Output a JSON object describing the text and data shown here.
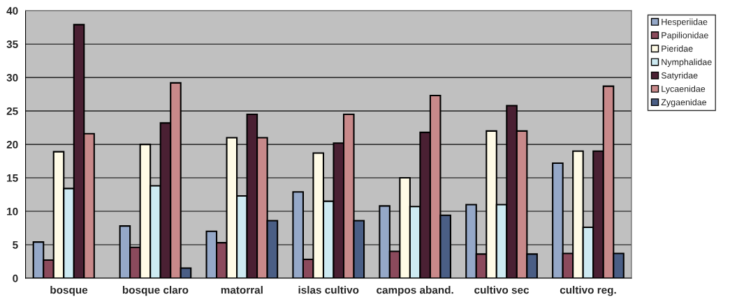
{
  "chart_data": {
    "type": "bar",
    "categories": [
      "bosque",
      "bosque claro",
      "matorral",
      "islas cultivo",
      "campos aband.",
      "cultivo sec",
      "cultivo reg."
    ],
    "series": [
      {
        "name": "Hesperiidae",
        "color": "#95a8c8",
        "values": [
          5.4,
          7.8,
          7.0,
          12.9,
          10.8,
          11.0,
          17.2
        ]
      },
      {
        "name": "Papilionidae",
        "color": "#8b4a5c",
        "values": [
          2.7,
          4.6,
          5.3,
          2.8,
          4.0,
          3.6,
          3.7
        ]
      },
      {
        "name": "Pieridae",
        "color": "#fffbe6",
        "values": [
          18.9,
          20.0,
          21.0,
          18.7,
          15.0,
          22.0,
          19.0
        ]
      },
      {
        "name": "Nymphalidae",
        "color": "#cdeaf2",
        "values": [
          13.4,
          13.8,
          12.3,
          11.5,
          10.7,
          11.0,
          7.6
        ]
      },
      {
        "name": "Satyridae",
        "color": "#4a2033",
        "values": [
          37.9,
          23.2,
          24.5,
          20.2,
          21.8,
          25.8,
          19.0
        ]
      },
      {
        "name": "Lycaenidae",
        "color": "#c8898a",
        "values": [
          21.6,
          29.2,
          21.0,
          24.5,
          27.3,
          22.0,
          28.7
        ]
      },
      {
        "name": "Zygaenidae",
        "color": "#4a5e85",
        "values": [
          null,
          1.5,
          8.6,
          8.6,
          9.4,
          3.6,
          3.7
        ]
      }
    ],
    "ylim": [
      0,
      40
    ],
    "yticks": [
      0,
      5,
      10,
      15,
      20,
      25,
      30,
      35,
      40
    ],
    "grid": "y",
    "legend": "right"
  }
}
